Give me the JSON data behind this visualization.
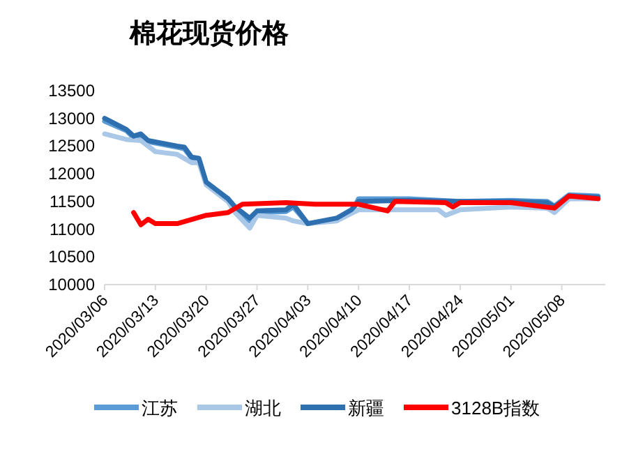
{
  "chart_data": {
    "type": "line",
    "title": "棉花现货价格",
    "xlim": [
      "2020-03-06",
      "2020-05-14"
    ],
    "xticks": [
      {
        "value": "2020-03-06",
        "label": "2020/03/06"
      },
      {
        "value": "2020-03-13",
        "label": "2020/03/13"
      },
      {
        "value": "2020-03-20",
        "label": "2020/03/20"
      },
      {
        "value": "2020-03-27",
        "label": "2020/03/27"
      },
      {
        "value": "2020-04-03",
        "label": "2020/04/03"
      },
      {
        "value": "2020-04-10",
        "label": "2020/04/10"
      },
      {
        "value": "2020-04-17",
        "label": "2020/04/17"
      },
      {
        "value": "2020-04-24",
        "label": "2020/04/24"
      },
      {
        "value": "2020-05-01",
        "label": "2020/05/01"
      },
      {
        "value": "2020-05-08",
        "label": "2020/05/08"
      }
    ],
    "ylim": [
      10000,
      13500
    ],
    "yticks": [
      10000,
      10500,
      11000,
      11500,
      12000,
      12500,
      13000,
      13500
    ],
    "grid": false,
    "legend": "bottom",
    "marker": "none",
    "line_style": "solid",
    "series": [
      {
        "name": "江苏",
        "color": "#5b9bd5",
        "x": [
          "2020-03-06",
          "2020-03-09",
          "2020-03-10",
          "2020-03-11",
          "2020-03-12",
          "2020-03-16",
          "2020-03-17",
          "2020-03-18",
          "2020-03-19",
          "2020-03-20",
          "2020-03-23",
          "2020-03-24",
          "2020-03-26",
          "2020-03-27",
          "2020-03-31",
          "2020-04-01",
          "2020-04-03",
          "2020-04-07",
          "2020-04-09",
          "2020-04-10",
          "2020-04-17",
          "2020-04-24",
          "2020-05-01",
          "2020-05-06",
          "2020-05-07",
          "2020-05-09",
          "2020-05-13"
        ],
        "values": [
          12950,
          12780,
          12650,
          12700,
          12580,
          12480,
          12450,
          12280,
          12250,
          11820,
          11550,
          11380,
          11150,
          11300,
          11320,
          11400,
          11100,
          11180,
          11300,
          11550,
          11550,
          11500,
          11520,
          11500,
          11420,
          11620,
          11600
        ]
      },
      {
        "name": "湖北",
        "color": "#a9c8e8",
        "x": [
          "2020-03-06",
          "2020-03-09",
          "2020-03-11",
          "2020-03-13",
          "2020-03-16",
          "2020-03-18",
          "2020-03-19",
          "2020-03-20",
          "2020-03-23",
          "2020-03-24",
          "2020-03-26",
          "2020-03-27",
          "2020-03-31",
          "2020-04-01",
          "2020-04-03",
          "2020-04-07",
          "2020-04-10",
          "2020-04-17",
          "2020-04-21",
          "2020-04-22",
          "2020-04-24",
          "2020-05-01",
          "2020-05-06",
          "2020-05-07",
          "2020-05-09",
          "2020-05-13"
        ],
        "values": [
          12720,
          12620,
          12600,
          12400,
          12350,
          12200,
          12200,
          11800,
          11500,
          11300,
          11020,
          11250,
          11200,
          11150,
          11100,
          11150,
          11350,
          11350,
          11350,
          11250,
          11350,
          11400,
          11380,
          11300,
          11550,
          11550
        ]
      },
      {
        "name": "新疆",
        "color": "#2e6fb0",
        "x": [
          "2020-03-06",
          "2020-03-09",
          "2020-03-10",
          "2020-03-11",
          "2020-03-12",
          "2020-03-16",
          "2020-03-17",
          "2020-03-18",
          "2020-03-19",
          "2020-03-20",
          "2020-03-23",
          "2020-03-24",
          "2020-03-26",
          "2020-03-27",
          "2020-03-31",
          "2020-04-01",
          "2020-04-03",
          "2020-04-07",
          "2020-04-09",
          "2020-04-10",
          "2020-04-17",
          "2020-04-24",
          "2020-05-01",
          "2020-05-06",
          "2020-05-07",
          "2020-05-09",
          "2020-05-13"
        ],
        "values": [
          13000,
          12800,
          12680,
          12720,
          12600,
          12500,
          12480,
          12300,
          12280,
          11850,
          11550,
          11400,
          11200,
          11330,
          11350,
          11450,
          11100,
          11200,
          11350,
          11500,
          11520,
          11500,
          11500,
          11480,
          11400,
          11600,
          11580
        ]
      },
      {
        "name": "3128B指数",
        "color": "#ff0000",
        "x": [
          "2020-03-10",
          "2020-03-11",
          "2020-03-12",
          "2020-03-13",
          "2020-03-16",
          "2020-03-20",
          "2020-03-23",
          "2020-03-25",
          "2020-03-31",
          "2020-04-04",
          "2020-04-10",
          "2020-04-14",
          "2020-04-15",
          "2020-04-22",
          "2020-04-23",
          "2020-04-24",
          "2020-05-01",
          "2020-05-07",
          "2020-05-09",
          "2020-05-13"
        ],
        "values": [
          11300,
          11080,
          11180,
          11100,
          11100,
          11250,
          11300,
          11450,
          11480,
          11450,
          11450,
          11330,
          11500,
          11480,
          11400,
          11480,
          11480,
          11380,
          11600,
          11550
        ]
      }
    ]
  }
}
